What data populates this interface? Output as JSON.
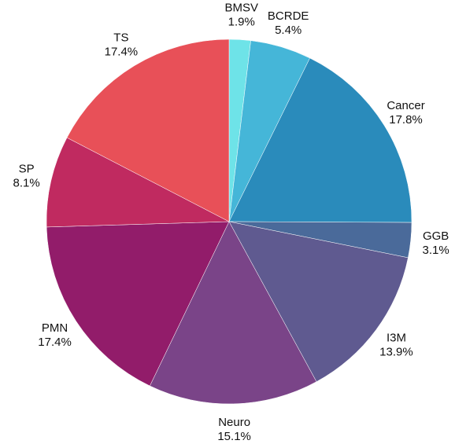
{
  "chart_data": {
    "type": "pie",
    "categories": [
      "BMSV",
      "BCRDE",
      "Cancer",
      "GGB",
      "I3M",
      "Neuro",
      "PMN",
      "SP",
      "TS"
    ],
    "values": [
      1.9,
      5.4,
      17.8,
      3.1,
      13.9,
      15.1,
      17.4,
      8.1,
      17.4
    ],
    "value_labels": [
      "1.9%",
      "5.4%",
      "17.8%",
      "3.1%",
      "13.9%",
      "15.1%",
      "17.4%",
      "8.1%",
      "17.4%"
    ],
    "colors": [
      "#6ee3e8",
      "#45b6d8",
      "#2a8bbb",
      "#4a6a9a",
      "#5f5a90",
      "#7a4488",
      "#921c6a",
      "#c02a60",
      "#e85058"
    ]
  }
}
